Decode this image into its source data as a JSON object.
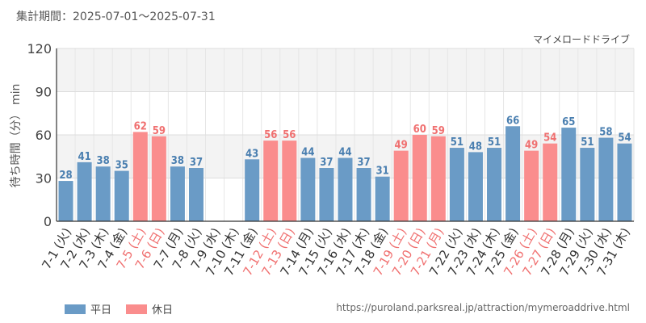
{
  "header": {
    "period": "集計期間：2025-07-01～2025-07-31",
    "attraction": "マイメロードドライブ"
  },
  "colors": {
    "weekday": "#6a9bc6",
    "holiday": "#fa8d8d",
    "weekday_label": "#4a7fb0",
    "holiday_label": "#f07070"
  },
  "legend": {
    "weekday": "平日",
    "holiday": "休日"
  },
  "source": "https://puroland.parksreal.jp/attraction/mymeroaddrive.html",
  "chart_data": {
    "type": "bar",
    "title": "",
    "ylabel": "待ち時間（分） min",
    "ylim": [
      0,
      120
    ],
    "yticks": [
      0,
      30,
      60,
      90,
      120
    ],
    "grid": true,
    "legend_position": "bottom-left",
    "categories": [
      "7-1 (火)",
      "7-2 (水)",
      "7-3 (木)",
      "7-4 (金)",
      "7-5 (土)",
      "7-6 (日)",
      "7-7 (月)",
      "7-8 (火)",
      "7-9 (水)",
      "7-10 (木)",
      "7-11 (金)",
      "7-12 (土)",
      "7-13 (日)",
      "7-14 (月)",
      "7-15 (火)",
      "7-16 (水)",
      "7-17 (木)",
      "7-18 (金)",
      "7-19 (土)",
      "7-20 (日)",
      "7-21 (月)",
      "7-22 (火)",
      "7-23 (水)",
      "7-24 (木)",
      "7-25 (金)",
      "7-26 (土)",
      "7-27 (日)",
      "7-28 (月)",
      "7-29 (火)",
      "7-30 (水)",
      "7-31 (木)"
    ],
    "values": [
      28,
      41,
      38,
      35,
      62,
      59,
      38,
      37,
      null,
      null,
      43,
      56,
      56,
      44,
      37,
      44,
      37,
      31,
      49,
      60,
      59,
      51,
      48,
      51,
      66,
      49,
      54,
      65,
      51,
      58,
      54
    ],
    "day_type": [
      "weekday",
      "weekday",
      "weekday",
      "weekday",
      "holiday",
      "holiday",
      "weekday",
      "weekday",
      "weekday",
      "weekday",
      "weekday",
      "holiday",
      "holiday",
      "weekday",
      "weekday",
      "weekday",
      "weekday",
      "weekday",
      "holiday",
      "holiday",
      "holiday",
      "weekday",
      "weekday",
      "weekday",
      "weekday",
      "holiday",
      "holiday",
      "weekday",
      "weekday",
      "weekday",
      "weekday"
    ]
  }
}
